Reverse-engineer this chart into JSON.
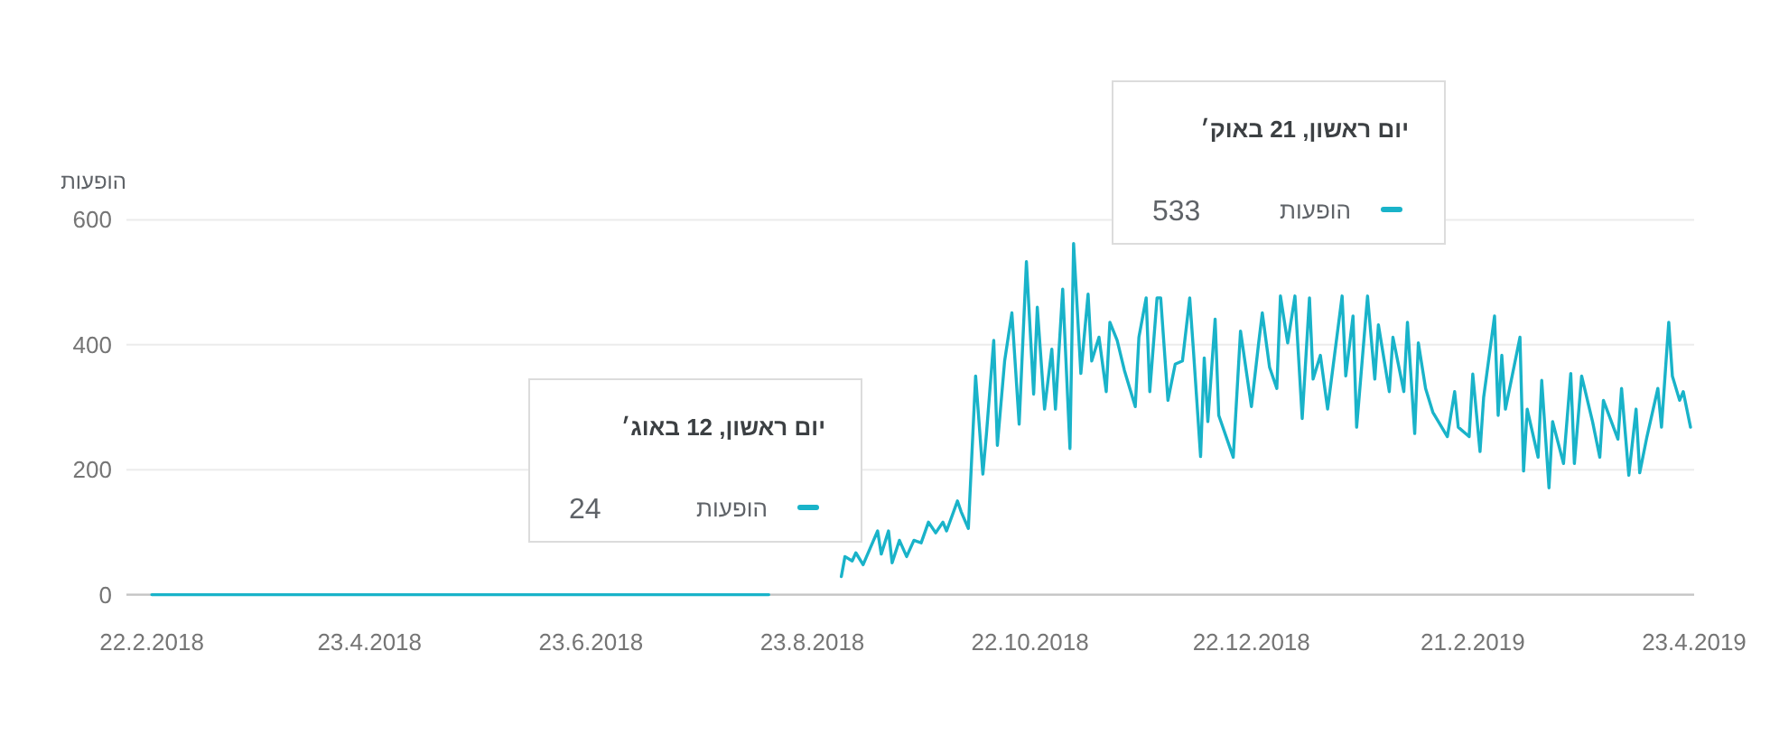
{
  "chart_data": {
    "type": "line",
    "ylabel": "הופעות",
    "xlim": [
      "2018-02-15",
      "2019-04-23"
    ],
    "xticks": [
      {
        "value": "2018-02-22",
        "label": "22.2.2018"
      },
      {
        "value": "2018-04-23",
        "label": "23.4.2018"
      },
      {
        "value": "2018-06-23",
        "label": "23.6.2018"
      },
      {
        "value": "2018-08-23",
        "label": "23.8.2018"
      },
      {
        "value": "2018-10-22",
        "label": "22.10.2018"
      },
      {
        "value": "2018-12-22",
        "label": "22.12.2018"
      },
      {
        "value": "2019-02-21",
        "label": "21.2.2019"
      },
      {
        "value": "2019-04-23",
        "label": "23.4.2019"
      }
    ],
    "ylim": [
      0,
      600
    ],
    "yticks": [
      0,
      200,
      400,
      600
    ],
    "grid": "y",
    "annotations": [
      "יום ראשון, 21 באוק׳",
      "533",
      "יום ראשון, 12 באוג׳",
      "24"
    ],
    "series": [
      {
        "name": "הופעות",
        "color": "#19b3c9",
        "x": [
          "2018-02-22",
          "2018-08-11",
          "2018-08-20",
          "2018-08-31",
          "2018-09-01",
          "2018-09-03",
          "2018-09-04",
          "2018-09-06",
          "2018-09-08",
          "2018-09-10",
          "2018-09-11",
          "2018-09-13",
          "2018-09-14",
          "2018-09-16",
          "2018-09-18",
          "2018-09-20",
          "2018-09-22",
          "2018-09-24",
          "2018-09-26",
          "2018-09-28",
          "2018-09-29",
          "2018-10-02",
          "2018-10-03",
          "2018-10-05",
          "2018-10-07",
          "2018-10-09",
          "2018-10-10",
          "2018-10-12",
          "2018-10-13",
          "2018-10-15",
          "2018-10-17",
          "2018-10-19",
          "2018-10-21",
          "2018-10-23",
          "2018-10-24",
          "2018-10-26",
          "2018-10-28",
          "2018-10-29",
          "2018-10-31",
          "2018-11-02",
          "2018-11-03",
          "2018-11-05",
          "2018-11-07",
          "2018-11-08",
          "2018-11-10",
          "2018-11-12",
          "2018-11-13",
          "2018-11-15",
          "2018-11-17",
          "2018-11-20",
          "2018-11-21",
          "2018-11-23",
          "2018-11-24",
          "2018-11-26",
          "2018-11-27",
          "2018-11-29",
          "2018-12-01",
          "2018-12-03",
          "2018-12-05",
          "2018-12-06",
          "2018-12-08",
          "2018-12-09",
          "2018-12-10",
          "2018-12-12",
          "2018-12-13",
          "2018-12-17",
          "2018-12-19",
          "2018-12-22",
          "2018-12-24",
          "2018-12-25",
          "2018-12-27",
          "2018-12-29",
          "2018-12-30",
          "2019-01-01",
          "2019-01-03",
          "2019-01-05",
          "2019-01-07",
          "2019-01-08",
          "2019-01-10",
          "2019-01-12",
          "2019-01-16",
          "2019-01-17",
          "2019-01-19",
          "2019-01-20",
          "2019-01-23",
          "2019-01-25",
          "2019-01-26",
          "2019-01-29",
          "2019-01-30",
          "2019-02-02",
          "2019-02-03",
          "2019-02-05",
          "2019-02-06",
          "2019-02-08",
          "2019-02-10",
          "2019-02-14",
          "2019-02-16",
          "2019-02-17",
          "2019-02-20",
          "2019-02-21",
          "2019-02-23",
          "2019-02-24",
          "2019-02-27",
          "2019-02-28",
          "2019-03-01",
          "2019-03-02",
          "2019-03-06",
          "2019-03-07",
          "2019-03-08",
          "2019-03-11",
          "2019-03-12",
          "2019-03-14",
          "2019-03-15",
          "2019-03-18",
          "2019-03-20",
          "2019-03-21",
          "2019-03-23",
          "2019-03-26",
          "2019-03-28",
          "2019-03-29",
          "2019-04-02",
          "2019-04-03",
          "2019-04-05",
          "2019-04-07",
          "2019-04-08",
          "2019-04-10",
          "2019-04-13",
          "2019-04-14",
          "2019-04-16",
          "2019-04-17",
          "2019-04-19",
          "2019-04-20",
          "2019-04-22"
        ],
        "values": [
          0,
          0,
          null,
          29,
          61,
          54,
          67,
          48,
          75,
          102,
          65,
          102,
          51,
          87,
          61,
          87,
          83,
          116,
          99,
          116,
          102,
          150,
          133,
          106,
          350,
          193,
          258,
          407,
          239,
          374,
          451,
          273,
          533,
          321,
          460,
          297,
          393,
          297,
          489,
          234,
          562,
          354,
          481,
          374,
          412,
          325,
          436,
          407,
          359,
          301,
          412,
          475,
          325,
          475,
          475,
          311,
          369,
          374,
          475,
          393,
          221,
          379,
          277,
          441,
          287,
          220,
          422,
          301,
          403,
          451,
          364,
          330,
          478,
          403,
          478,
          282,
          475,
          345,
          383,
          297,
          478,
          350,
          446,
          268,
          478,
          345,
          432,
          325,
          412,
          325,
          436,
          258,
          403,
          330,
          292,
          253,
          325,
          268,
          253,
          353,
          229,
          316,
          446,
          287,
          383,
          297,
          412,
          198,
          297,
          220,
          343,
          171,
          277,
          210,
          354,
          210,
          350,
          277,
          220,
          311,
          249,
          330,
          191,
          297,
          195,
          253,
          330,
          268,
          436,
          350,
          311,
          325,
          268
        ]
      }
    ]
  }
}
